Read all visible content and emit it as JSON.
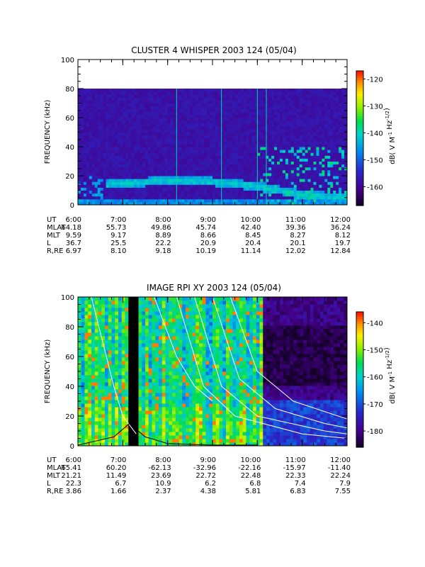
{
  "chart_data": [
    {
      "type": "heatmap",
      "title": "CLUSTER 4 WHISPER 2003 124 (05/04)",
      "ylabel": "FREQUENCY (kHz)",
      "ylim": [
        0,
        100
      ],
      "yticks": [
        "0",
        "20",
        "40",
        "60",
        "80",
        "100"
      ],
      "x_ticks": [
        "6:00",
        "7:00",
        "8:00",
        "9:00",
        "10:00",
        "11:00",
        "12:00"
      ],
      "xlim": [
        "6:00",
        "12:00"
      ],
      "data_top_khz": 80,
      "colorbar": {
        "label": "dB( V M^-1 Hz^-1/2 )",
        "range": [
          -167,
          -117
        ],
        "ticks": [
          "-120",
          "-130",
          "-140",
          "-150",
          "-160"
        ],
        "tick_values": [
          -120,
          -130,
          -140,
          -150,
          -160
        ]
      },
      "background_level_db": -158,
      "band": {
        "center_khz": [
          12,
          14,
          16,
          15,
          12,
          6,
          4
        ],
        "level_db": -143
      },
      "ephemeris": [
        {
          "label": "UT",
          "values": [
            "6:00",
            "7:00",
            "8:00",
            "9:00",
            "10:00",
            "11:00",
            "12:00"
          ]
        },
        {
          "label": "MLAT",
          "values": [
            "64.18",
            "55.73",
            "49.86",
            "45.74",
            "42.40",
            "39.36",
            "36.24"
          ]
        },
        {
          "label": "MLT",
          "values": [
            "9.59",
            "9.17",
            "8.89",
            "8.66",
            "8.45",
            "8.27",
            "8.12"
          ]
        },
        {
          "label": "L",
          "values": [
            "36.7",
            "25.5",
            "22.2",
            "20.9",
            "20.4",
            "20.1",
            "19.7"
          ]
        },
        {
          "label": "R,RE",
          "values": [
            "6.97",
            "8.10",
            "9.18",
            "10.19",
            "11.14",
            "12.02",
            "12.84"
          ]
        }
      ]
    },
    {
      "type": "heatmap",
      "title": "IMAGE RPI XY 2003 124 (05/04)",
      "ylabel": "FREQUENCY (kHz)",
      "ylim": [
        0,
        100
      ],
      "yticks": [
        "0",
        "20",
        "40",
        "60",
        "80",
        "100"
      ],
      "x_ticks": [
        "6:00",
        "7:00",
        "8:00",
        "9:00",
        "10:00",
        "11:00",
        "12:00"
      ],
      "xlim": [
        "6:00",
        "12:00"
      ],
      "colorbar": {
        "label": "dB( V M^-1 Hz^-1/2 )",
        "range": [
          -186,
          -136
        ],
        "ticks": [
          "-140",
          "-150",
          "-160",
          "-170",
          "-180"
        ],
        "tick_values": [
          -140,
          -150,
          -160,
          -170,
          -180
        ]
      },
      "data_gap": {
        "start": "7:06",
        "end": "7:18"
      },
      "ephemeris": [
        {
          "label": "UT",
          "values": [
            "6:00",
            "7:00",
            "8:00",
            "9:00",
            "10:00",
            "11:00",
            "12:00"
          ]
        },
        {
          "label": "MLAT",
          "values": [
            "65.41",
            "60.20",
            "-62.13",
            "-32.96",
            "-22.16",
            "-15.97",
            "-11.40"
          ]
        },
        {
          "label": "MLT",
          "values": [
            "21.21",
            "11.49",
            "23.69",
            "22.72",
            "22.48",
            "22.33",
            "22.24"
          ]
        },
        {
          "label": "L",
          "values": [
            "22.3",
            "6.7",
            "10.9",
            "6.2",
            "6.8",
            "7.4",
            "7.9"
          ]
        },
        {
          "label": "R,RE",
          "values": [
            "3.86",
            "1.66",
            "2.37",
            "4.38",
            "5.81",
            "6.83",
            "7.55"
          ]
        }
      ]
    }
  ]
}
